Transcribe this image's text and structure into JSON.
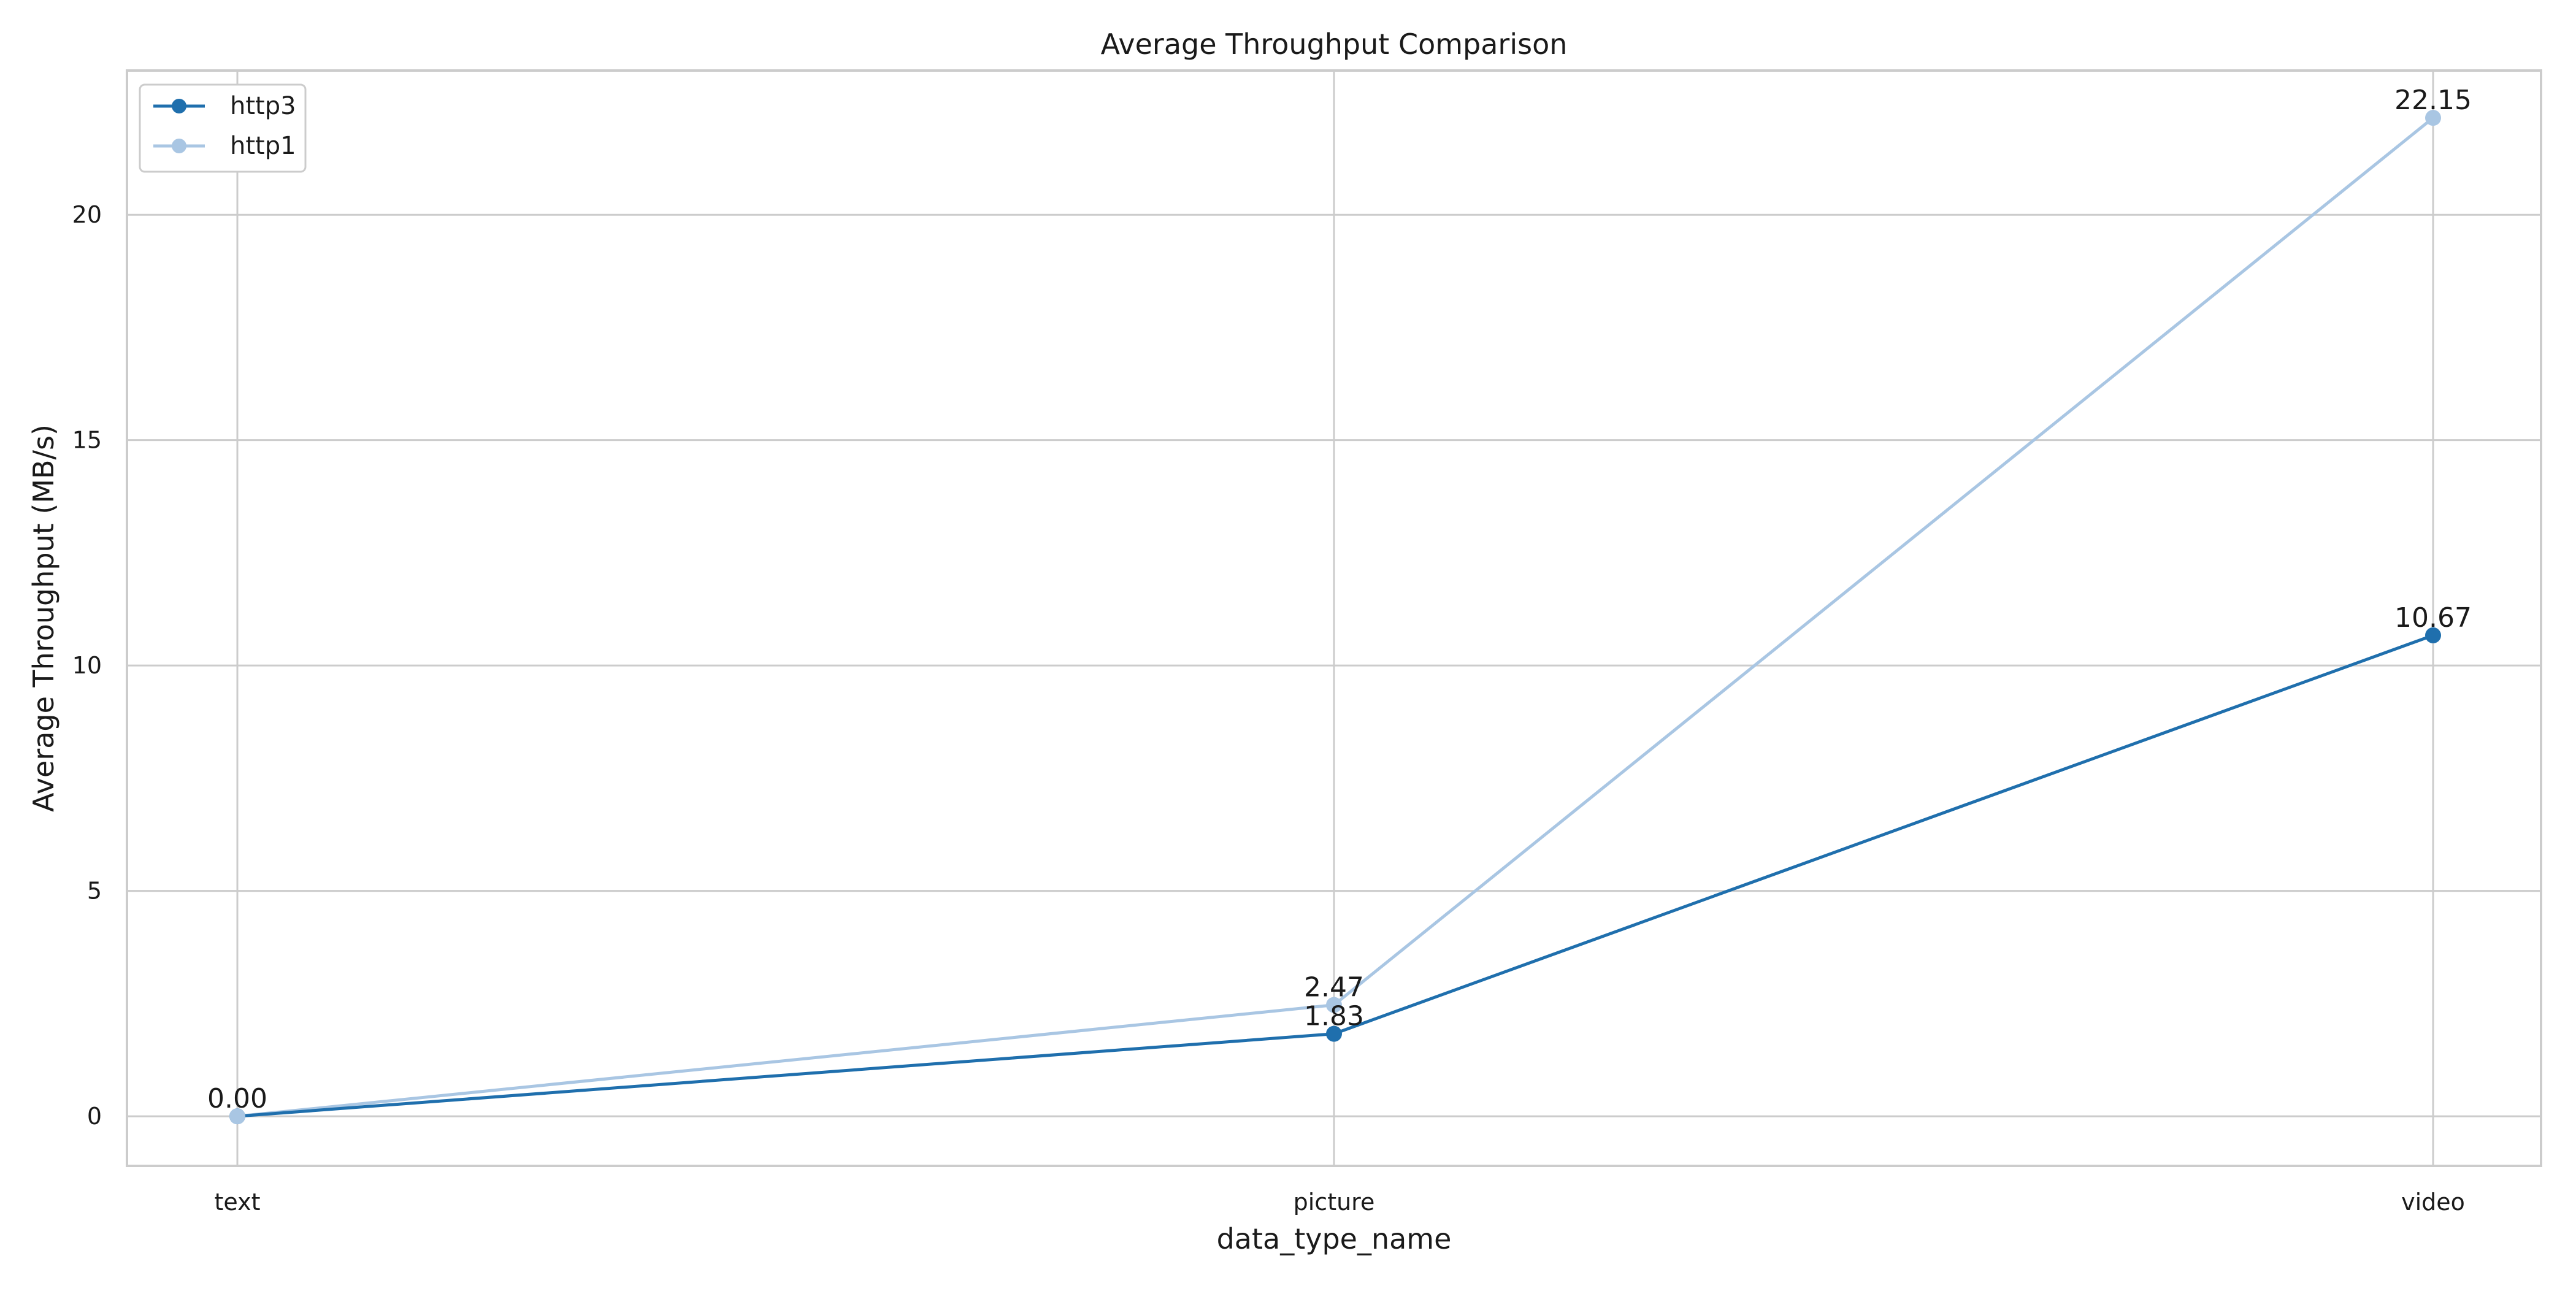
{
  "chart_data": {
    "type": "line",
    "title": "Average Throughput Comparison",
    "xlabel": "data_type_name",
    "ylabel": "Average Throughput (MB/s)",
    "categories": [
      "text",
      "picture",
      "video"
    ],
    "ylim": [
      -1.1,
      23.2
    ],
    "yticks": [
      0,
      5,
      10,
      15,
      20
    ],
    "grid": true,
    "legend_position": "top-left",
    "series": [
      {
        "name": "http3",
        "values": [
          0.0,
          1.83,
          10.67
        ],
        "labels": [
          "",
          "1.83",
          "10.67"
        ],
        "color": "#1f6fad"
      },
      {
        "name": "http1",
        "values": [
          0.0,
          2.47,
          22.15
        ],
        "labels": [
          "0.00",
          "2.47",
          "22.15"
        ],
        "color": "#a9c6e3"
      }
    ]
  }
}
